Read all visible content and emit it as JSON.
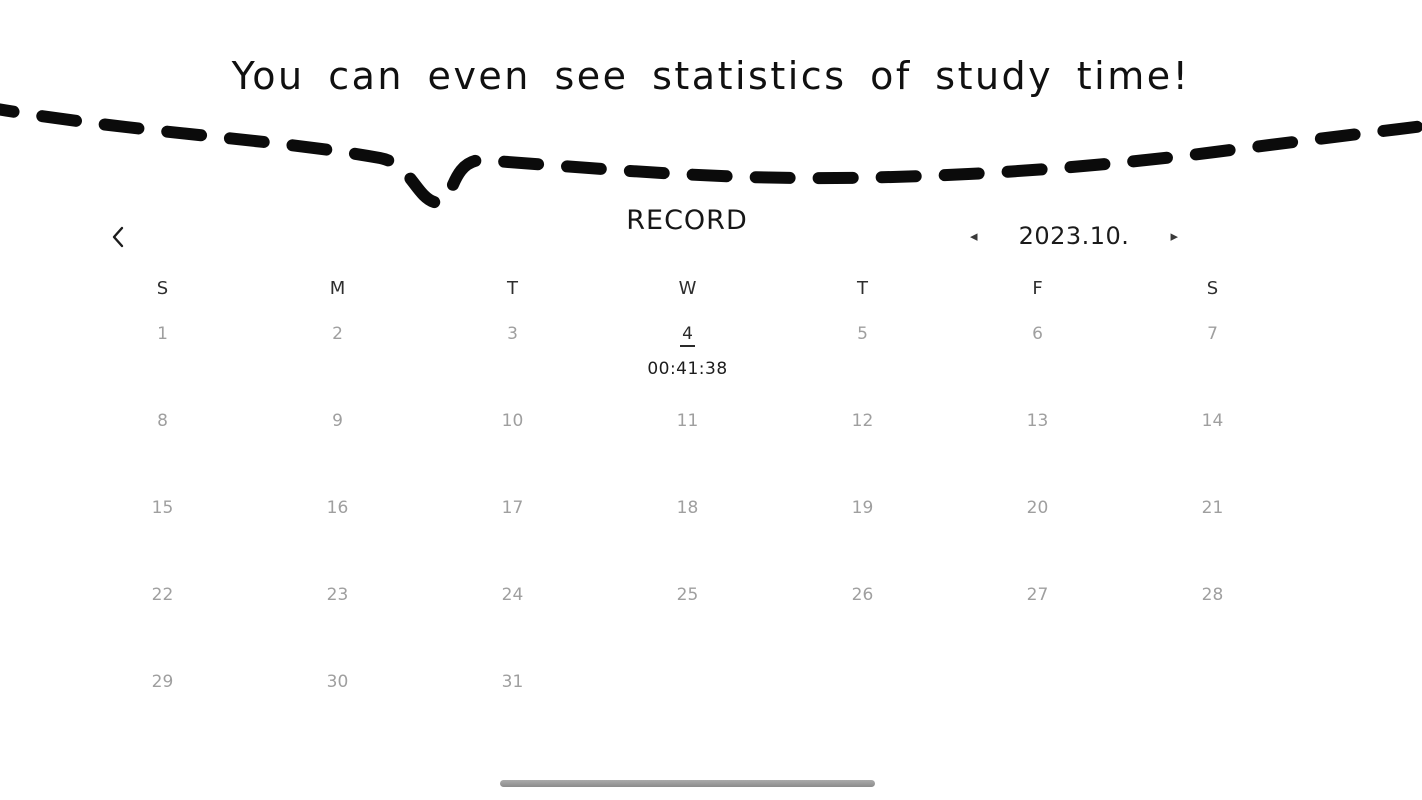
{
  "tagline": "You can even see statistics of study time!",
  "record": {
    "title": "RECORD",
    "back_icon": "chevron-left",
    "month_nav": {
      "prev_glyph": "◂",
      "label": "2023.10.",
      "next_glyph": "▸"
    }
  },
  "calendar": {
    "weekdays": [
      "S",
      "M",
      "T",
      "W",
      "T",
      "F",
      "S"
    ],
    "weeks": [
      [
        "1",
        "2",
        "3",
        "4",
        "5",
        "6",
        "7"
      ],
      [
        "8",
        "9",
        "10",
        "11",
        "12",
        "13",
        "14"
      ],
      [
        "15",
        "16",
        "17",
        "18",
        "19",
        "20",
        "21"
      ],
      [
        "22",
        "23",
        "24",
        "25",
        "26",
        "27",
        "28"
      ],
      [
        "29",
        "30",
        "31",
        "",
        "",
        "",
        ""
      ]
    ],
    "selected_day": "4",
    "selected_day_time": "00:41:38"
  },
  "colors": {
    "ink": "#101010",
    "day_number": "#9f9f9f",
    "selected": "#2a2a2a",
    "handle_bar": "#8c8c8c"
  }
}
